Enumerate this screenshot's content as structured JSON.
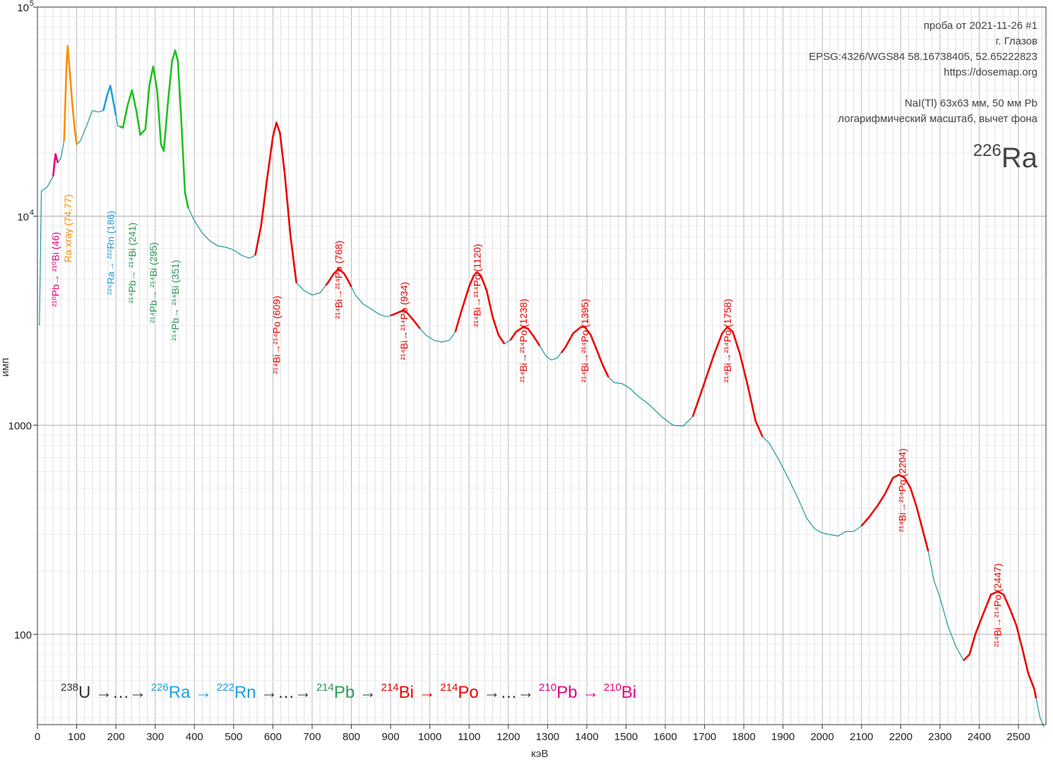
{
  "chart_data": {
    "type": "line",
    "xlabel": "кэВ",
    "ylabel": "имп",
    "xlim": [
      0,
      2570
    ],
    "ylim": [
      37,
      100000
    ],
    "yscale": "log",
    "grid": true,
    "x_ticks": [
      0,
      100,
      200,
      300,
      400,
      500,
      600,
      700,
      800,
      900,
      1000,
      1100,
      1200,
      1300,
      1400,
      1500,
      1600,
      1700,
      1800,
      1900,
      2000,
      2100,
      2200,
      2300,
      2400,
      2500
    ],
    "y_ticks": [
      {
        "value": 100000,
        "base": "10",
        "exp": "5"
      },
      {
        "value": 10000,
        "base": "10",
        "exp": "4"
      },
      {
        "value": 1000,
        "base": "1000",
        "exp": ""
      },
      {
        "value": 100,
        "base": "100",
        "exp": ""
      }
    ],
    "spectrum": [
      [
        5,
        3000
      ],
      [
        10,
        13200
      ],
      [
        25,
        13800
      ],
      [
        40,
        15500
      ],
      [
        46,
        19800
      ],
      [
        52,
        18000
      ],
      [
        60,
        19000
      ],
      [
        68,
        23000
      ],
      [
        74,
        52000
      ],
      [
        77,
        65000
      ],
      [
        82,
        50000
      ],
      [
        88,
        36000
      ],
      [
        95,
        26000
      ],
      [
        100,
        22000
      ],
      [
        110,
        23000
      ],
      [
        125,
        27000
      ],
      [
        140,
        32000
      ],
      [
        155,
        31500
      ],
      [
        168,
        32000
      ],
      [
        178,
        38000
      ],
      [
        186,
        42000
      ],
      [
        195,
        34000
      ],
      [
        205,
        27000
      ],
      [
        218,
        26500
      ],
      [
        230,
        34000
      ],
      [
        241,
        40000
      ],
      [
        252,
        32000
      ],
      [
        262,
        24500
      ],
      [
        275,
        26000
      ],
      [
        285,
        42000
      ],
      [
        295,
        52000
      ],
      [
        305,
        40000
      ],
      [
        315,
        22000
      ],
      [
        322,
        20500
      ],
      [
        332,
        34000
      ],
      [
        343,
        55000
      ],
      [
        351,
        62000
      ],
      [
        358,
        55000
      ],
      [
        366,
        30000
      ],
      [
        376,
        13000
      ],
      [
        384,
        11000
      ],
      [
        400,
        9500
      ],
      [
        420,
        8300
      ],
      [
        440,
        7600
      ],
      [
        460,
        7200
      ],
      [
        480,
        7100
      ],
      [
        500,
        6900
      ],
      [
        520,
        6500
      ],
      [
        540,
        6300
      ],
      [
        555,
        6500
      ],
      [
        570,
        9000
      ],
      [
        585,
        15000
      ],
      [
        600,
        24000
      ],
      [
        609,
        28000
      ],
      [
        618,
        25000
      ],
      [
        630,
        16000
      ],
      [
        645,
        8000
      ],
      [
        660,
        4800
      ],
      [
        680,
        4400
      ],
      [
        700,
        4200
      ],
      [
        720,
        4300
      ],
      [
        740,
        4800
      ],
      [
        755,
        5300
      ],
      [
        768,
        5600
      ],
      [
        782,
        5300
      ],
      [
        795,
        4800
      ],
      [
        810,
        4200
      ],
      [
        830,
        3800
      ],
      [
        850,
        3600
      ],
      [
        870,
        3400
      ],
      [
        890,
        3300
      ],
      [
        910,
        3400
      ],
      [
        925,
        3500
      ],
      [
        934,
        3550
      ],
      [
        945,
        3400
      ],
      [
        960,
        3150
      ],
      [
        975,
        2900
      ],
      [
        990,
        2700
      ],
      [
        1010,
        2550
      ],
      [
        1030,
        2500
      ],
      [
        1050,
        2550
      ],
      [
        1065,
        2800
      ],
      [
        1080,
        3500
      ],
      [
        1100,
        4600
      ],
      [
        1112,
        5200
      ],
      [
        1120,
        5400
      ],
      [
        1130,
        5200
      ],
      [
        1145,
        4400
      ],
      [
        1160,
        3300
      ],
      [
        1175,
        2700
      ],
      [
        1190,
        2450
      ],
      [
        1205,
        2550
      ],
      [
        1220,
        2800
      ],
      [
        1238,
        2950
      ],
      [
        1250,
        2900
      ],
      [
        1265,
        2650
      ],
      [
        1280,
        2400
      ],
      [
        1295,
        2150
      ],
      [
        1310,
        2050
      ],
      [
        1325,
        2100
      ],
      [
        1345,
        2350
      ],
      [
        1365,
        2750
      ],
      [
        1385,
        2950
      ],
      [
        1395,
        2950
      ],
      [
        1410,
        2700
      ],
      [
        1425,
        2300
      ],
      [
        1440,
        1950
      ],
      [
        1455,
        1700
      ],
      [
        1470,
        1600
      ],
      [
        1490,
        1580
      ],
      [
        1510,
        1500
      ],
      [
        1530,
        1380
      ],
      [
        1560,
        1250
      ],
      [
        1590,
        1100
      ],
      [
        1620,
        1000
      ],
      [
        1645,
        990
      ],
      [
        1670,
        1100
      ],
      [
        1700,
        1600
      ],
      [
        1725,
        2200
      ],
      [
        1745,
        2750
      ],
      [
        1758,
        2950
      ],
      [
        1772,
        2800
      ],
      [
        1790,
        2200
      ],
      [
        1810,
        1550
      ],
      [
        1830,
        1050
      ],
      [
        1848,
        880
      ],
      [
        1865,
        820
      ],
      [
        1890,
        680
      ],
      [
        1915,
        550
      ],
      [
        1940,
        440
      ],
      [
        1960,
        360
      ],
      [
        1980,
        320
      ],
      [
        2000,
        305
      ],
      [
        2020,
        300
      ],
      [
        2040,
        295
      ],
      [
        2060,
        310
      ],
      [
        2080,
        310
      ],
      [
        2100,
        330
      ],
      [
        2120,
        365
      ],
      [
        2140,
        410
      ],
      [
        2160,
        470
      ],
      [
        2180,
        560
      ],
      [
        2195,
        580
      ],
      [
        2210,
        560
      ],
      [
        2225,
        500
      ],
      [
        2240,
        410
      ],
      [
        2255,
        320
      ],
      [
        2270,
        250
      ],
      [
        2285,
        180
      ],
      [
        2300,
        150
      ],
      [
        2320,
        110
      ],
      [
        2340,
        88
      ],
      [
        2360,
        75
      ],
      [
        2375,
        80
      ],
      [
        2390,
        100
      ],
      [
        2410,
        125
      ],
      [
        2430,
        155
      ],
      [
        2447,
        160
      ],
      [
        2462,
        155
      ],
      [
        2480,
        130
      ],
      [
        2495,
        110
      ],
      [
        2510,
        85
      ],
      [
        2525,
        65
      ],
      [
        2540,
        55
      ],
      [
        2555,
        40
      ],
      [
        2565,
        36
      ]
    ],
    "highlights": [
      {
        "from": 40,
        "to": 52,
        "color": "#e6007e"
      },
      {
        "from": 68,
        "to": 100,
        "color": "#ff8c00"
      },
      {
        "from": 168,
        "to": 200,
        "color": "#1e9fe0"
      },
      {
        "from": 210,
        "to": 385,
        "color": "#1fc11f"
      },
      {
        "from": 555,
        "to": 660,
        "color": "#ee0000"
      },
      {
        "from": 735,
        "to": 800,
        "color": "#ee0000"
      },
      {
        "from": 900,
        "to": 975,
        "color": "#ee0000"
      },
      {
        "from": 1065,
        "to": 1190,
        "color": "#ee0000"
      },
      {
        "from": 1205,
        "to": 1280,
        "color": "#ee0000"
      },
      {
        "from": 1335,
        "to": 1455,
        "color": "#ee0000"
      },
      {
        "from": 1670,
        "to": 1848,
        "color": "#ee0000"
      },
      {
        "from": 2100,
        "to": 2270,
        "color": "#ee0000"
      },
      {
        "from": 2360,
        "to": 2545,
        "color": "#ee0000"
      }
    ],
    "base_color": "#2a9ea0",
    "annotations": [
      {
        "energy": 46,
        "color": "#e6007e",
        "label": "²¹⁰Pb→ ²¹⁰Bi (46)"
      },
      {
        "energy": 77,
        "color": "#ff8c00",
        "label": "Ra xray (74,77)"
      },
      {
        "energy": 186,
        "color": "#1e9fe0",
        "label": "²²⁶Ra→ ²²²Rn (186)"
      },
      {
        "energy": 241,
        "color": "#2a9a55",
        "label": "²¹⁴Pb→ ²¹⁴Bi (241)"
      },
      {
        "energy": 295,
        "color": "#2a9a55",
        "label": "²¹⁴Pb→ ²¹⁴Bi (295)"
      },
      {
        "energy": 351,
        "color": "#2a9a55",
        "label": "²¹⁴Pb→ ²¹⁴Bi (351)"
      },
      {
        "energy": 609,
        "color": "#ee0000",
        "label": "²¹⁴Bi→²¹⁴Po (609)"
      },
      {
        "energy": 768,
        "color": "#ee0000",
        "label": "²¹⁴Bi→²¹⁴Po (768)"
      },
      {
        "energy": 934,
        "color": "#ee0000",
        "label": "²¹⁴Bi→²¹⁴Po (934)"
      },
      {
        "energy": 1120,
        "color": "#ee0000",
        "label": "²¹⁴Bi→²¹⁴Po (1120)"
      },
      {
        "energy": 1238,
        "color": "#ee0000",
        "label": "²¹⁴Bi→²¹⁴Po (1238)"
      },
      {
        "energy": 1395,
        "color": "#ee0000",
        "label": "²¹⁴Bi→²¹⁴Po (1395)"
      },
      {
        "energy": 1758,
        "color": "#ee0000",
        "label": "²¹⁴Bi→²¹⁴Po (1758)"
      },
      {
        "energy": 2204,
        "color": "#ee0000",
        "label": "²¹⁴Bi→²¹⁴Po (2204)"
      },
      {
        "energy": 2447,
        "color": "#ee0000",
        "label": "²¹⁴Bi→²¹⁴Po (2447)"
      }
    ]
  },
  "info": {
    "lines": [
      "проба от 2021-11-26 #1",
      "г. Глазов",
      "EPSG:4326/WGS84  58.16738405, 52.65222823",
      "https://dosemap.org",
      "",
      "NaI(Tl) 63x63 мм, 50 мм Pb",
      "логарифмический масштаб, вычет фона"
    ],
    "isotope_mass": "226",
    "isotope_symbol": "Ra"
  },
  "decay_chain": [
    {
      "mass": "238",
      "sym": "U",
      "color": "#333333"
    },
    {
      "mass": "",
      "sym": " →…→ ",
      "color": "#333333"
    },
    {
      "mass": "226",
      "sym": "Ra",
      "color": "#1e9fe0"
    },
    {
      "mass": "",
      "sym": " → ",
      "color": "#1e9fe0"
    },
    {
      "mass": "222",
      "sym": "Rn",
      "color": "#1e9fe0"
    },
    {
      "mass": "",
      "sym": " →…→ ",
      "color": "#333333"
    },
    {
      "mass": "214",
      "sym": "Pb",
      "color": "#2a9a55"
    },
    {
      "mass": "",
      "sym": " → ",
      "color": "#333333"
    },
    {
      "mass": "214",
      "sym": "Bi",
      "color": "#ee0000"
    },
    {
      "mass": "",
      "sym": " → ",
      "color": "#ee0000"
    },
    {
      "mass": "214",
      "sym": "Po",
      "color": "#ee0000"
    },
    {
      "mass": "",
      "sym": " →…→ ",
      "color": "#333333"
    },
    {
      "mass": "210",
      "sym": "Pb",
      "color": "#e6007e"
    },
    {
      "mass": "",
      "sym": " → ",
      "color": "#e6007e"
    },
    {
      "mass": "210",
      "sym": "Bi",
      "color": "#e6007e"
    }
  ]
}
